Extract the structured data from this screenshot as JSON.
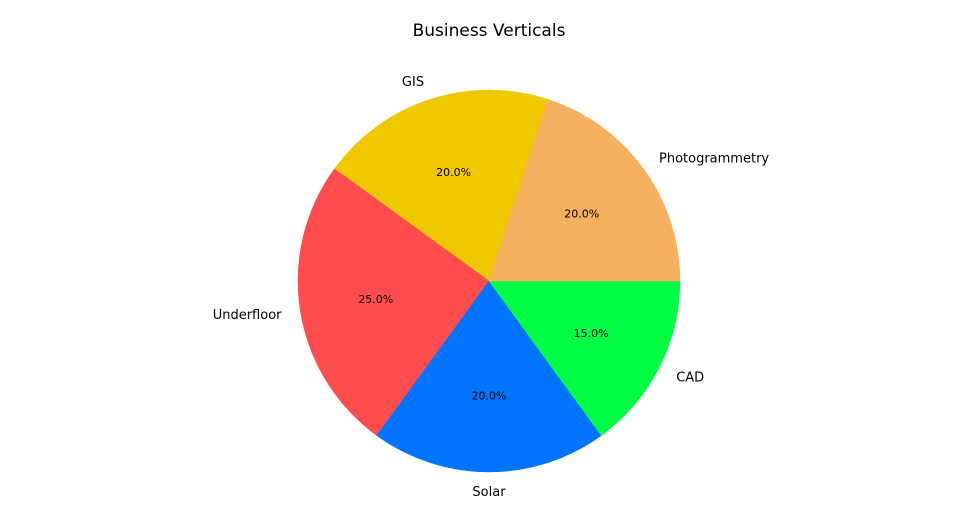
{
  "chart_data": {
    "type": "pie",
    "title": "Business Verticals",
    "slices": [
      {
        "label": "GIS",
        "value": 20.0,
        "pct_label": "20.0%",
        "color": "#eec900"
      },
      {
        "label": "Underfloor",
        "value": 25.0,
        "pct_label": "25.0%",
        "color": "#ff4d4d"
      },
      {
        "label": "Solar",
        "value": 20.0,
        "pct_label": "20.0%",
        "color": "#0073ff"
      },
      {
        "label": "CAD",
        "value": 15.0,
        "pct_label": "15.0%",
        "color": "#00ff44"
      },
      {
        "label": "Photogrammetry",
        "value": 20.0,
        "pct_label": "20.0%",
        "color": "#f5b060"
      }
    ],
    "start_angle_deg": 72,
    "direction": "counterclockwise",
    "legend": "none"
  }
}
